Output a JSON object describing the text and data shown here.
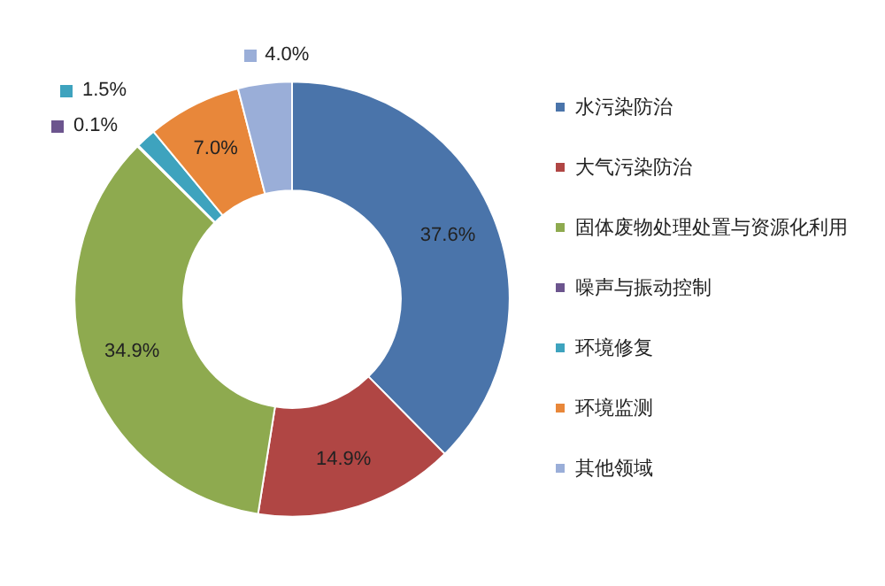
{
  "chart_data": {
    "type": "donut",
    "categories": [
      "水污染防治",
      "大气污染防治",
      "固体废物处理处置与资源化利用",
      "噪声与振动控制",
      "环境修复",
      "环境监测",
      "其他领域"
    ],
    "values": [
      37.6,
      14.9,
      34.9,
      0.1,
      1.5,
      7.0,
      4.0
    ],
    "colors": [
      "#4a74aa",
      "#b04644",
      "#8eaa4f",
      "#6c558e",
      "#3ea3be",
      "#e8873a",
      "#9aaed8"
    ],
    "value_labels": [
      "37.6%",
      "14.9%",
      "34.9%",
      "0.1%",
      "1.5%",
      "7.0%",
      "4.0%"
    ],
    "legend": "right"
  }
}
